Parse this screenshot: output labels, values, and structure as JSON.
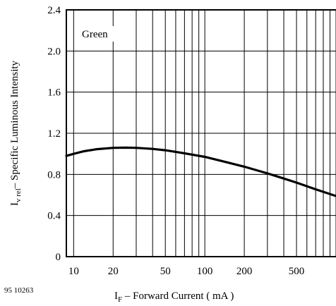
{
  "figure_code": "95 10263",
  "chart_data": {
    "type": "line",
    "x_scale": "log",
    "y_scale": "linear",
    "xlim": [
      8.8,
      1000
    ],
    "ylim": [
      0,
      2.4
    ],
    "x_ticks": [
      10,
      20,
      50,
      100,
      200,
      500
    ],
    "x_tick_labels": [
      "10",
      "20",
      "50",
      "100",
      "200",
      "500"
    ],
    "x_minor_grid": [
      30,
      40,
      60,
      70,
      80,
      90,
      300,
      400,
      600,
      700,
      800,
      900,
      1000
    ],
    "y_ticks": [
      0,
      0.4,
      0.8,
      1.2,
      1.6,
      2.0,
      2.4
    ],
    "y_tick_labels": [
      "0",
      "0.4",
      "0.8",
      "1.2",
      "1.6",
      "2.0",
      "2.4"
    ],
    "grid": true,
    "ylabel_main": "I",
    "ylabel_sub": "v rel",
    "ylabel_rest": "– Specific Luminous Intensity",
    "xlabel_main": "I",
    "xlabel_sub": "F",
    "xlabel_rest": " – Forward Current ( mA )",
    "annotation": "Green",
    "series": [
      {
        "x": [
          8.8,
          10,
          12,
          15,
          20,
          25,
          30,
          40,
          50,
          70,
          100,
          150,
          200,
          300,
          400,
          500,
          700,
          1000
        ],
        "y": [
          0.98,
          1.0,
          1.025,
          1.045,
          1.058,
          1.06,
          1.058,
          1.048,
          1.035,
          1.005,
          0.97,
          0.915,
          0.875,
          0.81,
          0.76,
          0.72,
          0.655,
          0.59
        ]
      }
    ]
  }
}
